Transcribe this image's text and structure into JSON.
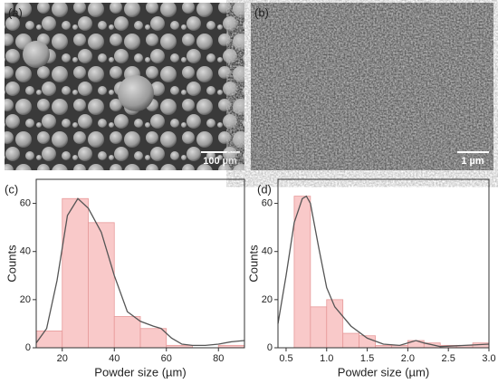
{
  "images": [
    {
      "label": "(a)",
      "scale_bar": "100 µm"
    },
    {
      "label": "(b)",
      "scale_bar": "1 µm"
    }
  ],
  "chart_data": [
    {
      "type": "histogram",
      "title": "(c)",
      "x_label": "Powder size (µm)",
      "y_label": "Counts",
      "bins": [
        10,
        20,
        30,
        40,
        50,
        60,
        70,
        80,
        90
      ],
      "counts": [
        7,
        62,
        52,
        13,
        8,
        1,
        0,
        1
      ],
      "color": "#f9c9c9",
      "edge_color": "#e79a9a",
      "fit": {
        "x": [
          10,
          14,
          18,
          22,
          26,
          30,
          35,
          40,
          45,
          50,
          55,
          58,
          62,
          66,
          70,
          75,
          80,
          85,
          90
        ],
        "y": [
          2,
          8,
          28,
          55,
          62,
          58,
          48,
          30,
          15,
          11,
          9,
          8,
          4,
          1.5,
          1,
          1,
          1.5,
          2.5,
          3
        ],
        "color": "#555555"
      },
      "xlim": [
        10,
        90
      ],
      "xticks": [
        20,
        40,
        60,
        80
      ],
      "ylim": [
        0,
        70
      ],
      "yticks": [
        0,
        20,
        40,
        60
      ]
    },
    {
      "type": "histogram",
      "title": "(d)",
      "x_label": "Powder size (µm)",
      "y_label": "Counts",
      "bins": [
        0.6,
        0.8,
        1.0,
        1.2,
        1.4,
        1.6,
        1.8,
        2.0,
        2.2,
        2.4,
        2.6,
        2.8,
        3.0
      ],
      "counts": [
        63,
        17,
        20,
        6,
        5,
        1,
        1,
        3,
        2,
        1,
        1,
        2
      ],
      "color": "#f9c9c9",
      "edge_color": "#e79a9a",
      "fit": {
        "x": [
          0.4,
          0.5,
          0.6,
          0.7,
          0.75,
          0.8,
          0.9,
          1.0,
          1.1,
          1.2,
          1.3,
          1.5,
          1.7,
          1.9,
          2.1,
          2.2,
          2.4,
          2.7,
          3.0
        ],
        "y": [
          10,
          30,
          52,
          62,
          63,
          60,
          42,
          25,
          17,
          13,
          9,
          4,
          1.5,
          1,
          3,
          2,
          0.5,
          1,
          1.5
        ],
        "color": "#555555"
      },
      "xlim": [
        0.4,
        3.0
      ],
      "xticks": [
        0.5,
        {
          "value": 1,
          "label": "1.0"
        },
        1.5,
        {
          "value": 2,
          "label": "2.0"
        },
        2.5,
        {
          "value": 3,
          "label": "3.0"
        }
      ],
      "ylim": [
        0,
        70
      ],
      "yticks": [
        0,
        20,
        40,
        60
      ]
    }
  ]
}
